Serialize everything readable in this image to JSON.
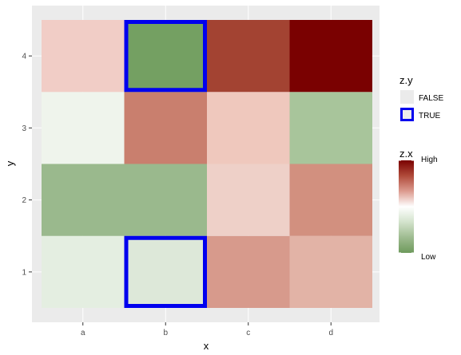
{
  "chart_data": {
    "type": "heatmap",
    "xlabel": "x",
    "ylabel": "y",
    "x_categories": [
      "a",
      "b",
      "c",
      "d"
    ],
    "y_categories": [
      "1",
      "2",
      "3",
      "4"
    ],
    "cells": [
      {
        "x": "a",
        "y": "1",
        "fill": "#e4eee1",
        "highlight": false
      },
      {
        "x": "b",
        "y": "1",
        "fill": "#dde8d9",
        "highlight": true
      },
      {
        "x": "c",
        "y": "1",
        "fill": "#d79a8c",
        "highlight": false
      },
      {
        "x": "d",
        "y": "1",
        "fill": "#e2b3a6",
        "highlight": false
      },
      {
        "x": "a",
        "y": "2",
        "fill": "#9ab98d",
        "highlight": false
      },
      {
        "x": "b",
        "y": "2",
        "fill": "#9ab98d",
        "highlight": false
      },
      {
        "x": "c",
        "y": "2",
        "fill": "#eed0c8",
        "highlight": false
      },
      {
        "x": "d",
        "y": "2",
        "fill": "#d2907f",
        "highlight": false
      },
      {
        "x": "a",
        "y": "3",
        "fill": "#eff4ec",
        "highlight": false
      },
      {
        "x": "b",
        "y": "3",
        "fill": "#c97f6e",
        "highlight": false
      },
      {
        "x": "c",
        "y": "3",
        "fill": "#efc8bd",
        "highlight": false
      },
      {
        "x": "d",
        "y": "3",
        "fill": "#a8c59b",
        "highlight": false
      },
      {
        "x": "a",
        "y": "4",
        "fill": "#f1cdc6",
        "highlight": false
      },
      {
        "x": "b",
        "y": "4",
        "fill": "#74a062",
        "highlight": true
      },
      {
        "x": "c",
        "y": "4",
        "fill": "#a34332",
        "highlight": false
      },
      {
        "x": "d",
        "y": "4",
        "fill": "#7a0101",
        "highlight": false
      }
    ],
    "highlight_color": "#0000ee",
    "panel_background": "#ebebeb",
    "grid": true,
    "legends": {
      "zy": {
        "title": "z.y",
        "items": [
          {
            "label": "FALSE",
            "highlight": false
          },
          {
            "label": "TRUE",
            "highlight": true
          }
        ]
      },
      "zx": {
        "title": "z.x",
        "high_label": "High",
        "low_label": "Low",
        "gradient": [
          "#7a0101",
          "#b04a3a",
          "#dc9b8f",
          "#ffffff",
          "#d3e3cc",
          "#9ebb90",
          "#6e9a5c"
        ]
      }
    },
    "legend_position": "right"
  }
}
